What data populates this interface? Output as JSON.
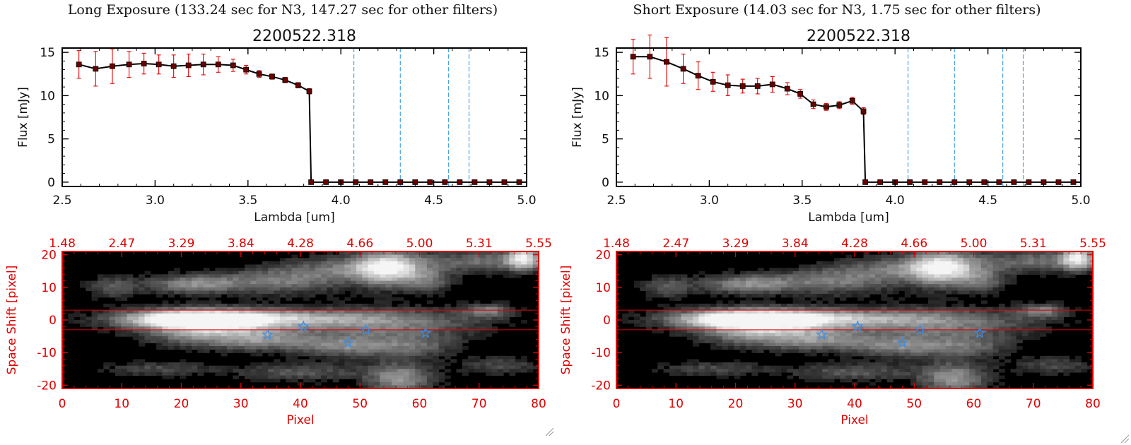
{
  "panels": [
    {
      "title": "Long Exposure (133.24 sec for N3, 147.27 sec for other filters)",
      "subtitle": "2200522.318"
    },
    {
      "title": "Short Exposure (14.03 sec for N3, 1.75 sec for other filters)",
      "subtitle": "2200522.318"
    }
  ],
  "colors": {
    "spectrum_line": "#000000",
    "error_bar": "#e00000",
    "marker": "#6a0000",
    "filter_line": "#4aa3e6",
    "image_axes": "#e00000",
    "star_marker": "#3a8ee6"
  },
  "icons": {
    "marker": "filled-square",
    "star": "star-outline",
    "grip": "resize-grip-icon"
  },
  "chart_data": [
    {
      "type": "line",
      "panel": "long",
      "xlabel": "Lambda [um]",
      "ylabel": "Flux [mJy]",
      "xlim": [
        2.5,
        5.0
      ],
      "ylim": [
        -0.5,
        15.5
      ],
      "xticks": [
        "2.5",
        "3.0",
        "3.5",
        "4.0",
        "4.5",
        "5.0"
      ],
      "yticks": [
        "0",
        "5",
        "10",
        "15"
      ],
      "series": [
        {
          "x": [
            2.59,
            2.68,
            2.77,
            2.86,
            2.94,
            3.02,
            3.1,
            3.18,
            3.26,
            3.34,
            3.42,
            3.49,
            3.56,
            3.63,
            3.7,
            3.77,
            3.83
          ],
          "y": [
            13.6,
            13.1,
            13.4,
            13.6,
            13.7,
            13.6,
            13.4,
            13.5,
            13.6,
            13.6,
            13.5,
            13.0,
            12.5,
            12.2,
            11.8,
            11.2,
            10.5
          ],
          "err": [
            1.6,
            2.0,
            2.0,
            1.5,
            1.2,
            1.1,
            1.3,
            1.3,
            1.2,
            0.9,
            0.7,
            0.5,
            0.4,
            0.3,
            0.3,
            0.3,
            0.3
          ]
        }
      ],
      "zero_x": [
        3.84,
        3.92,
        4.0,
        4.08,
        4.16,
        4.24,
        4.32,
        4.4,
        4.48,
        4.56,
        4.64,
        4.72,
        4.8,
        4.88,
        4.96
      ],
      "filter_lines": [
        4.07,
        4.32,
        4.58,
        4.69
      ]
    },
    {
      "type": "line",
      "panel": "short",
      "xlabel": "Lambda [um]",
      "ylabel": "Flux [mJy]",
      "xlim": [
        2.5,
        5.0
      ],
      "ylim": [
        -0.5,
        15.5
      ],
      "xticks": [
        "2.5",
        "3.0",
        "3.5",
        "4.0",
        "4.5",
        "5.0"
      ],
      "yticks": [
        "0",
        "5",
        "10",
        "15"
      ],
      "series": [
        {
          "x": [
            2.59,
            2.68,
            2.77,
            2.86,
            2.94,
            3.02,
            3.1,
            3.18,
            3.26,
            3.34,
            3.42,
            3.49,
            3.56,
            3.63,
            3.7,
            3.77,
            3.83
          ],
          "y": [
            14.5,
            14.5,
            13.9,
            13.1,
            12.3,
            11.6,
            11.2,
            11.1,
            11.1,
            11.3,
            10.8,
            10.2,
            9.0,
            8.7,
            8.9,
            9.4,
            8.2
          ],
          "err": [
            2.0,
            2.5,
            2.8,
            1.7,
            1.6,
            1.1,
            1.2,
            0.8,
            0.9,
            0.9,
            0.7,
            0.5,
            0.5,
            0.4,
            0.4,
            0.4,
            0.4
          ]
        }
      ],
      "zero_x": [
        3.84,
        3.92,
        4.0,
        4.08,
        4.16,
        4.24,
        4.32,
        4.4,
        4.48,
        4.56,
        4.64,
        4.72,
        4.8,
        4.88,
        4.96
      ],
      "filter_lines": [
        4.07,
        4.32,
        4.58,
        4.69
      ]
    },
    {
      "type": "heatmap",
      "panel": "long",
      "xlabel": "Pixel",
      "ylabel": "Space Shift [pixel]",
      "xlim": [
        0,
        80
      ],
      "ylim": [
        -21,
        21
      ],
      "xticks": [
        "0",
        "10",
        "20",
        "30",
        "40",
        "50",
        "60",
        "70",
        "80"
      ],
      "yticks": [
        "-20",
        "-10",
        "0",
        "10",
        "20"
      ],
      "top_ticks": [
        "1.48",
        "2.47",
        "3.29",
        "3.84",
        "4.28",
        "4.66",
        "5.00",
        "5.31",
        "5.55"
      ],
      "band": [
        -3,
        3
      ],
      "stars": [
        {
          "x": 34.5,
          "y": -4.5
        },
        {
          "x": 40.5,
          "y": -2
        },
        {
          "x": 48,
          "y": -7
        },
        {
          "x": 51,
          "y": -3
        },
        {
          "x": 61,
          "y": -4
        }
      ]
    },
    {
      "type": "heatmap",
      "panel": "short",
      "xlabel": "Pixel",
      "ylabel": "Space Shift [pixel]",
      "xlim": [
        0,
        80
      ],
      "ylim": [
        -21,
        21
      ],
      "xticks": [
        "0",
        "10",
        "20",
        "30",
        "40",
        "50",
        "60",
        "70",
        "80"
      ],
      "yticks": [
        "-20",
        "-10",
        "0",
        "10",
        "20"
      ],
      "top_ticks": [
        "1.48",
        "2.47",
        "3.29",
        "3.84",
        "4.28",
        "4.66",
        "5.00",
        "5.31",
        "5.55"
      ],
      "band": [
        -3,
        3
      ],
      "stars": [
        {
          "x": 34.5,
          "y": -4.5
        },
        {
          "x": 40.5,
          "y": -2
        },
        {
          "x": 48,
          "y": -7
        },
        {
          "x": 51,
          "y": -3
        },
        {
          "x": 61,
          "y": -4
        }
      ]
    }
  ]
}
